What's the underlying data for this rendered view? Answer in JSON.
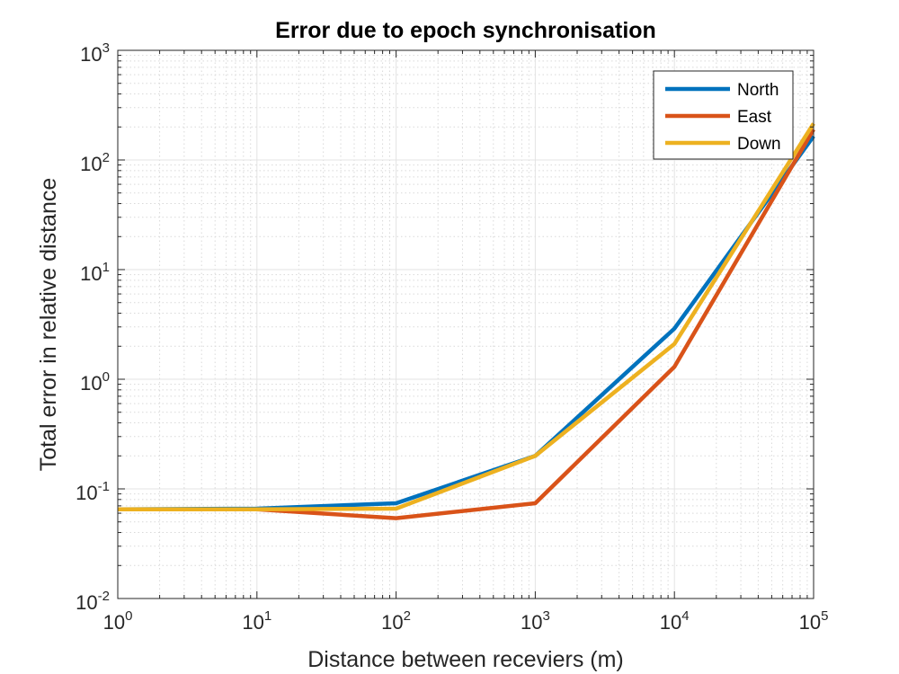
{
  "chart_data": {
    "type": "line",
    "title": "Error due to epoch synchronisation",
    "xlabel": "Distance between receviers (m)",
    "ylabel": "Total error in relative distance",
    "xscale": "log",
    "yscale": "log",
    "xlim": [
      1,
      100000
    ],
    "ylim": [
      0.01,
      1000
    ],
    "x_ticks": [
      {
        "value": 1,
        "base": "10",
        "exp": "0"
      },
      {
        "value": 10,
        "base": "10",
        "exp": "1"
      },
      {
        "value": 100,
        "base": "10",
        "exp": "2"
      },
      {
        "value": 1000,
        "base": "10",
        "exp": "3"
      },
      {
        "value": 10000,
        "base": "10",
        "exp": "4"
      },
      {
        "value": 100000,
        "base": "10",
        "exp": "5"
      }
    ],
    "y_ticks": [
      {
        "value": 0.01,
        "base": "10",
        "exp": "-2"
      },
      {
        "value": 0.1,
        "base": "10",
        "exp": "-1"
      },
      {
        "value": 1,
        "base": "10",
        "exp": "0"
      },
      {
        "value": 10,
        "base": "10",
        "exp": "1"
      },
      {
        "value": 100,
        "base": "10",
        "exp": "2"
      },
      {
        "value": 1000,
        "base": "10",
        "exp": "3"
      }
    ],
    "grid": true,
    "minor_grid": true,
    "legend_position": "top-right",
    "x": [
      1,
      10,
      100,
      1000,
      10000,
      100000
    ],
    "series": [
      {
        "name": "North",
        "color": "#0072BD",
        "values": [
          0.065,
          0.066,
          0.074,
          0.2,
          2.9,
          165
        ]
      },
      {
        "name": "East",
        "color": "#D95319",
        "values": [
          0.065,
          0.065,
          0.054,
          0.074,
          1.3,
          190
        ]
      },
      {
        "name": "Down",
        "color": "#EDB120",
        "values": [
          0.065,
          0.065,
          0.066,
          0.2,
          2.1,
          215
        ]
      }
    ]
  }
}
